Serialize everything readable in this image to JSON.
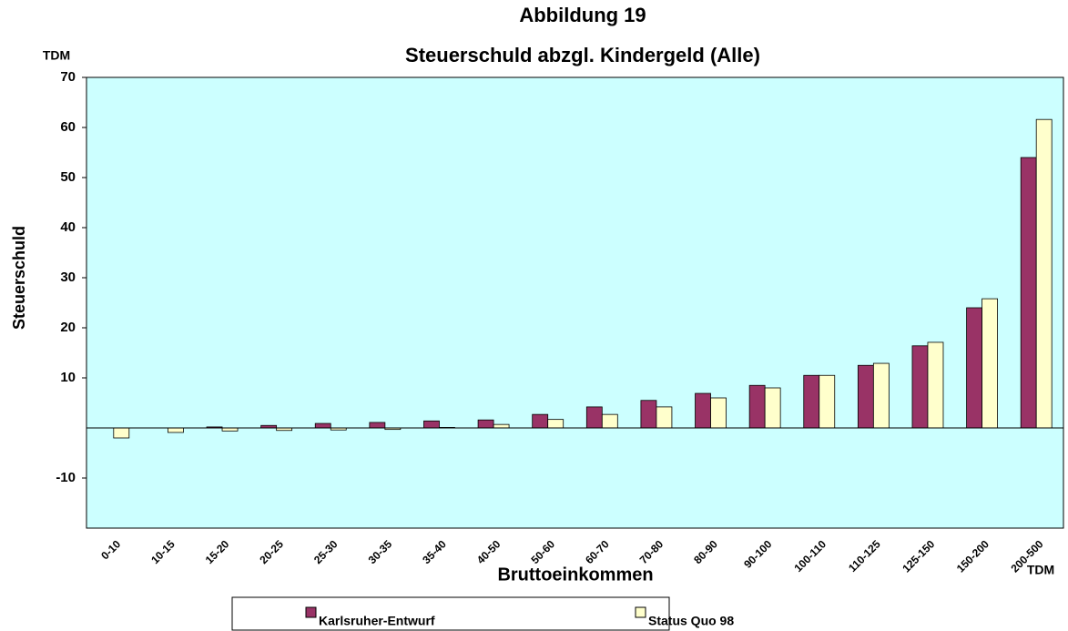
{
  "chart_data": {
    "type": "bar",
    "title": "Abbildung 19",
    "subtitle": "Steuerschuld abzgl. Kindergeld (Alle)",
    "y_unit": "TDM",
    "x_unit": "TDM",
    "ylabel": "Steuerschuld",
    "xlabel": "Bruttoeinkommen",
    "categories": [
      "0-10",
      "10-15",
      "15-20",
      "20-25",
      "25-30",
      "30-35",
      "35-40",
      "40-50",
      "50-60",
      "60-70",
      "70-80",
      "80-90",
      "90-100",
      "100-110",
      "110-125",
      "125-150",
      "150-200",
      "200-500"
    ],
    "series": [
      {
        "name": "Karlsruher-Entwurf",
        "color": "#993366",
        "values": [
          0,
          0,
          0.2,
          0.5,
          0.9,
          1.1,
          1.4,
          1.6,
          2.7,
          4.2,
          5.5,
          6.9,
          8.5,
          10.5,
          12.5,
          16.4,
          24,
          54
        ]
      },
      {
        "name": "Status Quo 98",
        "color": "#ffffcc",
        "values": [
          -2,
          -0.9,
          -0.6,
          -0.5,
          -0.4,
          -0.3,
          0.1,
          0.7,
          1.7,
          2.7,
          4.2,
          6,
          8,
          10.5,
          12.9,
          17.1,
          25.8,
          61.6
        ]
      }
    ],
    "ylim": [
      -20,
      70
    ],
    "yticks": [
      -10,
      10,
      20,
      30,
      40,
      50,
      60,
      70
    ],
    "background": "#ccffff"
  }
}
